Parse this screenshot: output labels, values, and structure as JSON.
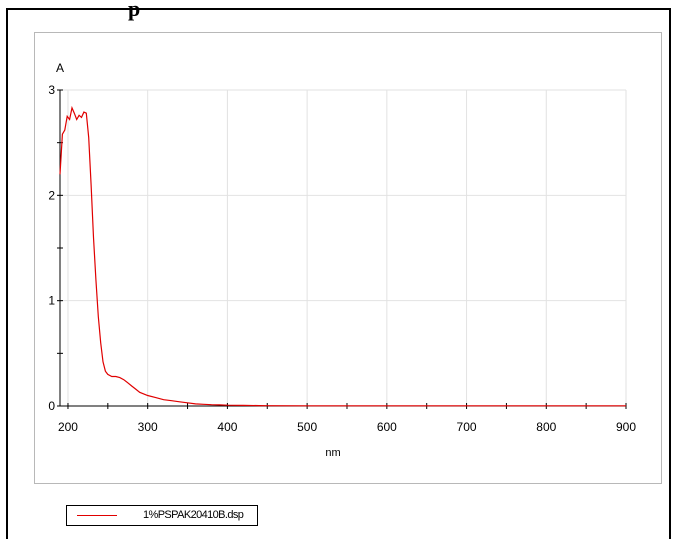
{
  "page": {
    "title_fragment": "p"
  },
  "chart_data": {
    "type": "line",
    "ylabel": "A",
    "xlabel": "nm",
    "xlim": [
      190,
      900
    ],
    "ylim": [
      0,
      3
    ],
    "x_ticks": [
      200,
      300,
      400,
      500,
      600,
      700,
      800,
      900
    ],
    "y_ticks": [
      0,
      1,
      2,
      3
    ],
    "grid": true,
    "legend_position": "bottom-left",
    "series": [
      {
        "name": "1%PSPAK20410B.dsp",
        "color": "#e00000",
        "x": [
          190,
          193,
          196,
          199,
          202,
          205,
          208,
          211,
          214,
          217,
          220,
          223,
          226,
          229,
          232,
          235,
          238,
          241,
          244,
          247,
          250,
          255,
          260,
          265,
          270,
          275,
          280,
          285,
          290,
          300,
          310,
          320,
          330,
          340,
          350,
          360,
          370,
          380,
          390,
          400,
          420,
          440,
          450,
          500,
          600,
          700,
          800,
          900
        ],
        "y": [
          2.2,
          2.58,
          2.62,
          2.75,
          2.72,
          2.83,
          2.78,
          2.72,
          2.76,
          2.74,
          2.79,
          2.78,
          2.55,
          2.1,
          1.6,
          1.2,
          0.85,
          0.6,
          0.42,
          0.33,
          0.3,
          0.28,
          0.28,
          0.27,
          0.25,
          0.22,
          0.19,
          0.16,
          0.13,
          0.1,
          0.08,
          0.06,
          0.05,
          0.04,
          0.03,
          0.02,
          0.016,
          0.012,
          0.01,
          0.008,
          0.006,
          0.004,
          0.003,
          0.002,
          0.002,
          0.002,
          0.002,
          0.002
        ]
      }
    ]
  }
}
